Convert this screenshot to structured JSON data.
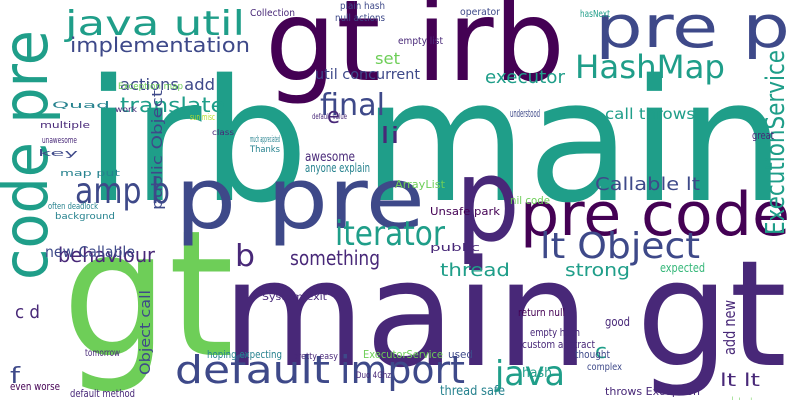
{
  "words": [
    "gt",
    "main gt",
    "irb main",
    "gt irb",
    "code pre",
    "p pre",
    "p",
    "pre code",
    "pre p",
    "java util",
    "amp b",
    "default",
    "import",
    "java",
    "iterator",
    "lt Object",
    "HashMap",
    "ExecutionService",
    "final",
    "implementation",
    "translate",
    "actions add",
    "behaviour",
    "something",
    "thread",
    "strong",
    "Callable lt",
    "lt lt",
    "executor",
    "set",
    "util concurrent",
    "call throws",
    "li",
    "e",
    "public Object",
    "Object call",
    "new Callable",
    "b",
    "c d",
    "f",
    "c",
    "add new",
    "ArrayList",
    "Unsafe park",
    "nil code",
    "return null",
    "empty hash",
    "custom abstract",
    "thread safe",
    "throws Exception",
    "default method",
    "even worse",
    "tomorrow",
    "hash",
    "Collection",
    "plain hash",
    "null actions",
    "empty list",
    "operator",
    "hasNext",
    "awesome",
    "anyone explain",
    "good",
    "expected",
    "thought",
    "complex",
    "used",
    "hoping expecting",
    "ExecutorService",
    "Duo 4Ghz",
    "pretty easy",
    "System exit",
    "much appreciated",
    "Thanks",
    "public",
    "understood",
    "great",
    "key",
    "multiple",
    "unawesome",
    "map put",
    "often deadlock",
    "background",
    "Exception map",
    "default value",
    "sun misc",
    "class",
    "work",
    "Quad",
    "abstract map",
    "d e"
  ]
}
